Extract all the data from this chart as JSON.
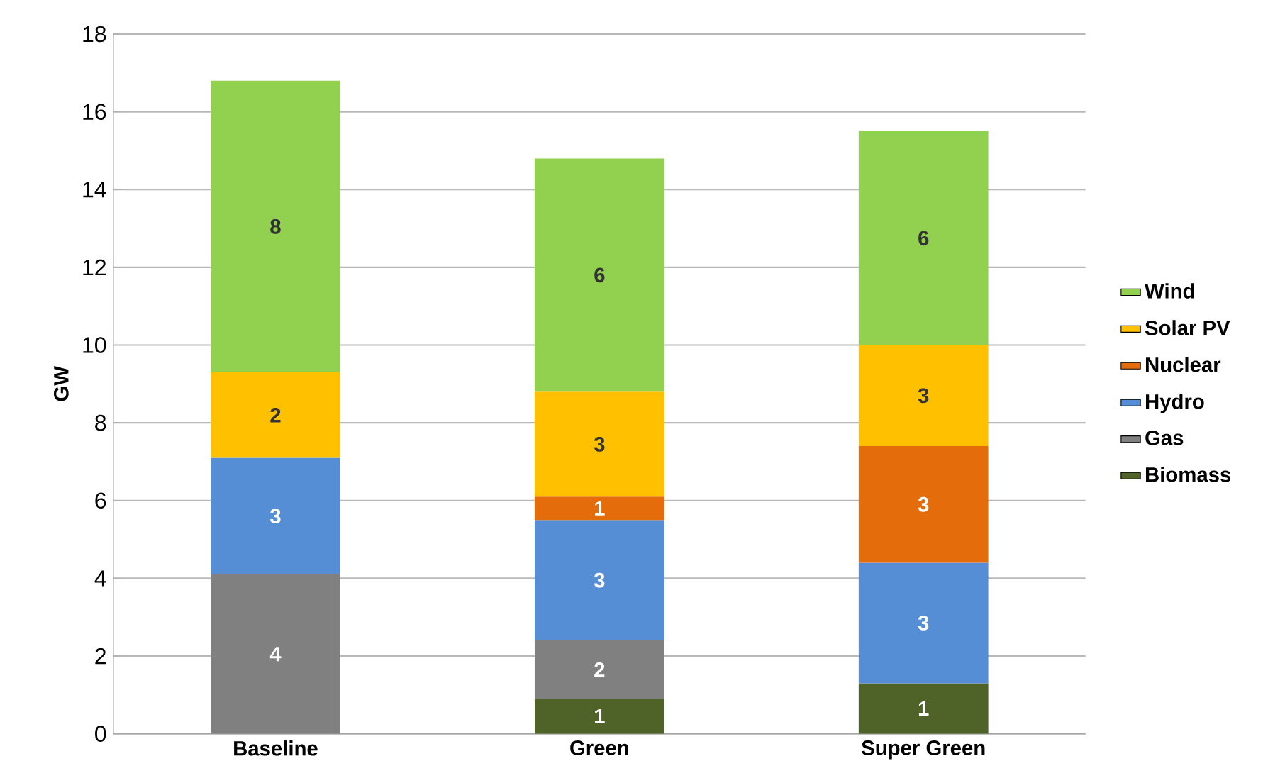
{
  "chart_data": {
    "type": "bar",
    "stacked": true,
    "ylabel": "GW",
    "categories": [
      "Baseline",
      "Green",
      "Super Green"
    ],
    "series": [
      {
        "name": "Biomass",
        "color": "#4f6228",
        "values": [
          null,
          0.9,
          1.3
        ],
        "value_labels": [
          null,
          "1",
          "1"
        ]
      },
      {
        "name": "Gas",
        "color": "#808080",
        "values": [
          4.1,
          1.5,
          null
        ],
        "value_labels": [
          "4",
          "2",
          null
        ]
      },
      {
        "name": "Hydro",
        "color": "#558ed5",
        "values": [
          3.0,
          3.1,
          3.1
        ],
        "value_labels": [
          "3",
          "3",
          "3"
        ]
      },
      {
        "name": "Nuclear",
        "color": "#e46c0a",
        "values": [
          null,
          0.6,
          3.0
        ],
        "value_labels": [
          null,
          "1",
          "3"
        ]
      },
      {
        "name": "Solar PV",
        "color": "#ffc000",
        "values": [
          2.2,
          2.7,
          2.6
        ],
        "value_labels": [
          "2",
          "3",
          "3"
        ]
      },
      {
        "name": "Wind",
        "color": "#92d050",
        "values": [
          7.5,
          6.0,
          5.5
        ],
        "value_labels": [
          "8",
          "6",
          "6"
        ]
      }
    ],
    "ylim": [
      0,
      18
    ],
    "yticks": [
      0,
      2,
      4,
      6,
      8,
      10,
      12,
      14,
      16,
      18
    ],
    "grid": "y",
    "legend": "right"
  }
}
